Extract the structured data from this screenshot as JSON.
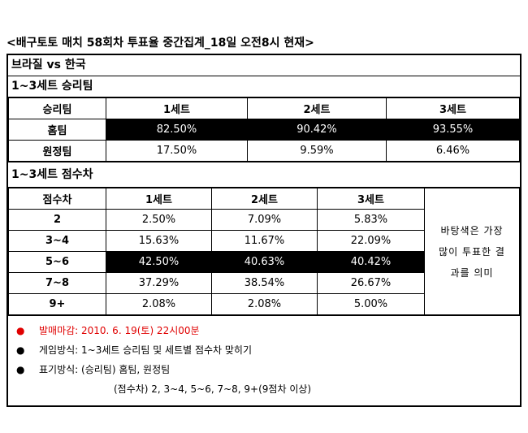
{
  "title": "<배구토토 매치 58회차 투표율 중간집계_18일 오전8시 현재>",
  "match": "브라질 vs 한국",
  "winner_table": {
    "title": "1~3세트 승리팀",
    "header": [
      "승리팀",
      "1세트",
      "2세트",
      "3세트"
    ],
    "rows": [
      [
        "홈팀",
        "82.50%",
        "90.42%",
        "93.55%"
      ],
      [
        "원정팀",
        "17.50%",
        "9.59%",
        "6.46%"
      ]
    ]
  },
  "margin_table": {
    "title": "1~3세트 점수차",
    "header": [
      "점수차",
      "1세트",
      "2세트",
      "3세트"
    ],
    "rows": [
      [
        "2",
        "2.50%",
        "7.09%",
        "5.83%"
      ],
      [
        "3~4",
        "15.63%",
        "11.67%",
        "22.09%"
      ],
      [
        "5~6",
        "42.50%",
        "40.63%",
        "40.42%"
      ],
      [
        "7~8",
        "37.29%",
        "38.54%",
        "26.67%"
      ],
      [
        "9+",
        "2.08%",
        "2.08%",
        "5.00%"
      ]
    ],
    "note": [
      "바탕색은 가장",
      "많이 투표한 결",
      "과를 의미"
    ]
  },
  "notes": [
    "발매마감: 2010. 6. 19(토) 22시00분",
    "게임방식: 1~3세트 승리팀 및 세트별 점수차 맞히기",
    "표기방식: (승리팀) 홈팀, 원정팀",
    "(점수차) 2, 3~4, 5~6, 7~8, 9+(9점차 이상)"
  ]
}
